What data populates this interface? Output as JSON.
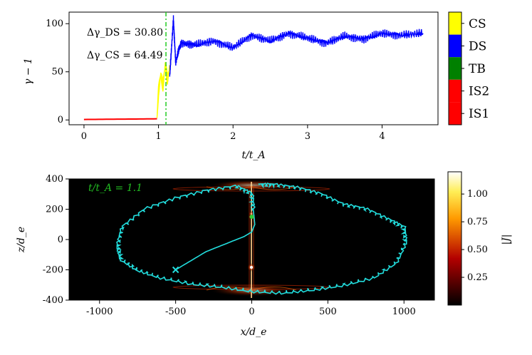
{
  "chart_data": [
    {
      "type": "line",
      "title": "",
      "xlabel": "t/t_A",
      "ylabel": "γ − 1",
      "xlim": [
        -0.2,
        4.75
      ],
      "ylim": [
        -5,
        112
      ],
      "xticks": [
        0,
        1,
        2,
        3,
        4
      ],
      "xtick_labels": [
        "0",
        "1",
        "2",
        "3",
        "4"
      ],
      "yticks": [
        0,
        50,
        100
      ],
      "ytick_labels": [
        "0",
        "50",
        "100"
      ],
      "vline_x": 1.1,
      "vline_color": "#22cc22",
      "annotations": [
        "Δγ_DS = 30.80",
        "Δγ_CS = 64.49"
      ],
      "series": [
        {
          "name": "IS1",
          "color": "#ff0000",
          "x": [
            0,
            0.2,
            0.4,
            0.6,
            0.8,
            0.98
          ],
          "y": [
            0.5,
            0.6,
            0.8,
            0.9,
            1.0,
            1.2
          ]
        },
        {
          "name": "CS",
          "color": "#ffff00",
          "x": [
            0.98,
            1.0,
            1.03,
            1.06,
            1.09,
            1.12,
            1.15
          ],
          "y": [
            2,
            30,
            48,
            35,
            58,
            42,
            55
          ]
        },
        {
          "name": "DS",
          "color": "#0000ff",
          "x": [
            1.15,
            1.2,
            1.23,
            1.3,
            1.5,
            1.75,
            2.0,
            2.25,
            2.5,
            2.75,
            3.0,
            3.25,
            3.5,
            3.75,
            4.0,
            4.25,
            4.55
          ],
          "y": [
            45,
            105,
            60,
            80,
            78,
            82,
            75,
            88,
            82,
            90,
            85,
            80,
            87,
            84,
            90,
            88,
            90
          ]
        }
      ],
      "colorbar": {
        "type": "categorical",
        "labels": [
          "CS",
          "DS",
          "TB",
          "IS2",
          "IS1"
        ],
        "colors": [
          "#ffff00",
          "#0000ff",
          "#008000",
          "#ff0000",
          "#ff0000"
        ]
      }
    },
    {
      "type": "heatmap",
      "title": "",
      "xlabel": "x/d_e",
      "ylabel": "z/d_e",
      "xlim": [
        -1200,
        1200
      ],
      "ylim": [
        -400,
        400
      ],
      "xticks": [
        -1000,
        -500,
        0,
        500,
        1000
      ],
      "xtick_labels": [
        "-1000",
        "-500",
        "0",
        "500",
        "1000"
      ],
      "yticks": [
        -400,
        -200,
        0,
        200,
        400
      ],
      "ytick_labels": [
        "-400",
        "-200",
        "0",
        "200",
        "400"
      ],
      "annotation": "t/t_A = 1.1",
      "trajectory_color": "#22dddd",
      "trajectory_points": [
        [
          -500,
          -200
        ],
        [
          -300,
          -80
        ],
        [
          -150,
          -20
        ],
        [
          -50,
          20
        ],
        [
          0,
          50
        ],
        [
          20,
          100
        ],
        [
          10,
          200
        ],
        [
          0,
          300
        ],
        [
          -100,
          350
        ],
        [
          -300,
          320
        ],
        [
          -500,
          270
        ],
        [
          -700,
          200
        ],
        [
          -850,
          80
        ],
        [
          -880,
          -40
        ],
        [
          -860,
          -130
        ],
        [
          -750,
          -200
        ],
        [
          -600,
          -250
        ],
        [
          -400,
          -290
        ],
        [
          -200,
          -310
        ],
        [
          0,
          -340
        ],
        [
          200,
          -350
        ],
        [
          400,
          -330
        ],
        [
          600,
          -300
        ],
        [
          800,
          -250
        ],
        [
          950,
          -150
        ],
        [
          1010,
          -20
        ],
        [
          1000,
          80
        ],
        [
          900,
          130
        ],
        [
          750,
          200
        ],
        [
          600,
          230
        ],
        [
          450,
          300
        ],
        [
          300,
          340
        ],
        [
          150,
          360
        ],
        [
          50,
          360
        ]
      ],
      "start_marker": [
        -500,
        -200
      ],
      "end_marker": [
        0,
        150
      ],
      "colorbar": {
        "label": "|J|",
        "ticks": [
          0.25,
          0.5,
          0.75,
          1.0
        ],
        "tick_labels": [
          "0.25",
          "0.50",
          "0.75",
          "1.00"
        ],
        "range": [
          0,
          1.2
        ]
      }
    }
  ]
}
